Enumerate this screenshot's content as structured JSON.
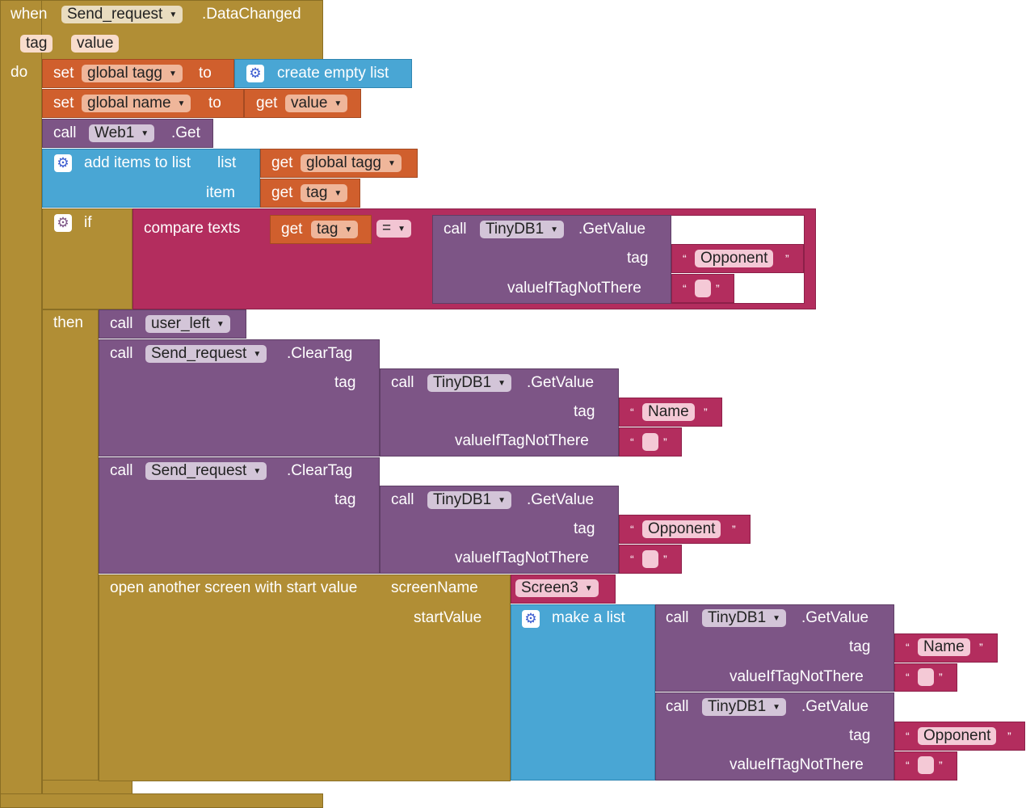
{
  "event": {
    "when": "when",
    "component": "Send_request",
    "event_name": ".DataChanged",
    "params": [
      "tag",
      "value"
    ],
    "do": "do"
  },
  "set_tagg": {
    "set": "set",
    "var": "global tagg",
    "to": "to",
    "value": "create empty list"
  },
  "set_name": {
    "set": "set",
    "var": "global name",
    "to": "to",
    "get": "get",
    "getvar": "value"
  },
  "web_get": {
    "call": "call",
    "component": "Web1",
    "method": ".Get"
  },
  "add_items": {
    "label": "add items to list",
    "list": "list",
    "item": "item",
    "get1": "get",
    "var1": "global tagg",
    "get2": "get",
    "var2": "tag"
  },
  "if_block": {
    "if": "if",
    "then": "then"
  },
  "compare": {
    "label": "compare texts",
    "get": "get",
    "var": "tag",
    "op": "=",
    "call": "call",
    "db": "TinyDB1",
    "method": ".GetValue",
    "tag": "tag",
    "tagval": "Opponent",
    "vitn": "valueIfTagNotThere"
  },
  "user_left": {
    "call": "call",
    "proc": "user_left"
  },
  "clear1": {
    "call": "call",
    "component": "Send_request",
    "method": ".ClearTag",
    "tag": "tag",
    "inner_call": "call",
    "db": "TinyDB1",
    "inner_method": ".GetValue",
    "inner_tag": "tag",
    "tagval": "Name",
    "vitn": "valueIfTagNotThere"
  },
  "clear2": {
    "call": "call",
    "component": "Send_request",
    "method": ".ClearTag",
    "tag": "tag",
    "inner_call": "call",
    "db": "TinyDB1",
    "inner_method": ".GetValue",
    "inner_tag": "tag",
    "tagval": "Opponent",
    "vitn": "valueIfTagNotThere"
  },
  "open_screen": {
    "label": "open another screen with start value",
    "screenName": "screenName",
    "screen": "Screen3",
    "startValue": "startValue",
    "make_list": "make a list"
  },
  "get1": {
    "call": "call",
    "db": "TinyDB1",
    "method": ".GetValue",
    "tag": "tag",
    "tagval": "Name",
    "vitn": "valueIfTagNotThere"
  },
  "get2": {
    "call": "call",
    "db": "TinyDB1",
    "method": ".GetValue",
    "tag": "tag",
    "tagval": "Opponent",
    "vitn": "valueIfTagNotThere"
  },
  "colors": {
    "event": "#B18E35",
    "variables": "#D05F2D",
    "lists": "#49A6D4",
    "procedures": "#7D5586",
    "text": "#B32D5E"
  }
}
